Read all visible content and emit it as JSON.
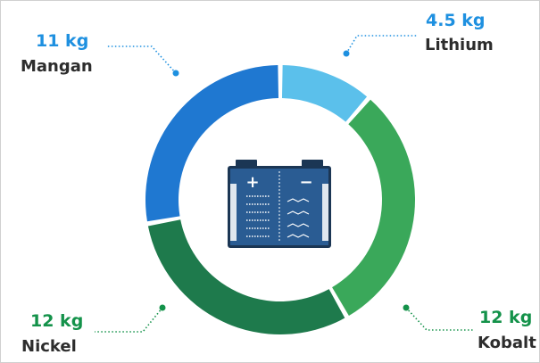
{
  "chart_data": {
    "type": "pie",
    "series": [
      {
        "name": "Lithium",
        "value": 4.5,
        "value_label": "4.5 kg",
        "color": "#5bc0eb",
        "label_color": "#1e90e0"
      },
      {
        "name": "Kobalt",
        "value": 12,
        "value_label": "12 kg",
        "color": "#3aa85a",
        "label_color": "#14924a"
      },
      {
        "name": "Nickel",
        "value": 12,
        "value_label": "12 kg",
        "color": "#1e7a4c",
        "label_color": "#14924a"
      },
      {
        "name": "Mangan",
        "value": 11,
        "value_label": "11 kg",
        "color": "#1f78d1",
        "label_color": "#1e90e0"
      }
    ],
    "center_icon": "battery-icon"
  }
}
